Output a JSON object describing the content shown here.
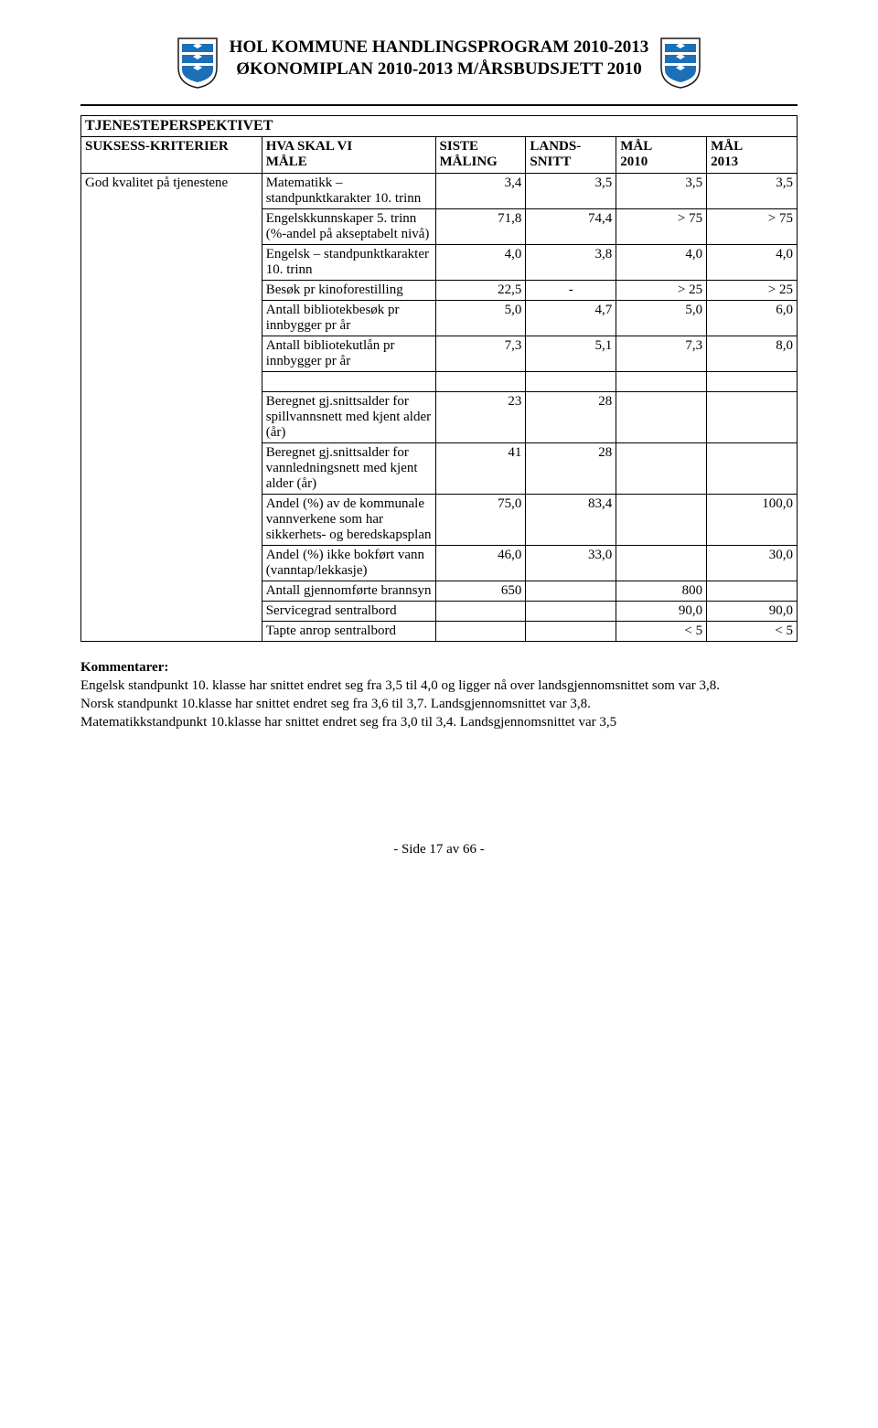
{
  "header": {
    "line1": "HOL KOMMUNE HANDLINGSPROGRAM 2010-2013",
    "line2": "ØKONOMIPLAN 2010-2013 M/ÅRSBUDSJETT 2010"
  },
  "shield": {
    "bg": "#ffffff",
    "blue": "#1d6fb8",
    "border": "#1a1a1a"
  },
  "table": {
    "section_title": "TJENESTEPERSPEKTIVET",
    "headers": {
      "criteria": "SUKSESS-KRITERIER",
      "measure_l1": "HVA SKAL VI",
      "measure_l2": "MÅLE",
      "last_l1": "SISTE",
      "last_l2": "MÅLING",
      "national_l1": "LANDS-",
      "national_l2": "SNITT",
      "goal2010_l1": "MÅL",
      "goal2010_l2": "2010",
      "goal2013_l1": "MÅL",
      "goal2013_l2": "2013"
    },
    "criteria_label": "God kvalitet på tjenestene",
    "rows1": [
      {
        "measure": "Matematikk – standpunktkarakter 10. trinn",
        "v1": "3,4",
        "v2": "3,5",
        "v3": "3,5",
        "v4": "3,5"
      },
      {
        "measure": "Engelskkunnskaper 5. trinn (%-andel på akseptabelt nivå)",
        "v1": "71,8",
        "v2": "74,4",
        "v3": "> 75",
        "v4": "> 75"
      },
      {
        "measure": "Engelsk – standpunktkarakter 10. trinn",
        "v1": "4,0",
        "v2": "3,8",
        "v3": "4,0",
        "v4": "4,0"
      },
      {
        "measure": "Besøk pr kinoforestilling",
        "v1": "22,5",
        "v2": "-",
        "v3": "> 25",
        "v4": "> 25"
      },
      {
        "measure": "Antall bibliotekbesøk pr innbygger pr år",
        "v1": "5,0",
        "v2": "4,7",
        "v3": "5,0",
        "v4": "6,0"
      },
      {
        "measure": "Antall bibliotekutlån pr innbygger pr år",
        "v1": "7,3",
        "v2": "5,1",
        "v3": "7,3",
        "v4": "8,0"
      }
    ],
    "rows2": [
      {
        "measure": "Beregnet gj.snittsalder for spillvannsnett med kjent alder  (år)",
        "v1": "23",
        "v2": "28",
        "v3": "",
        "v4": ""
      },
      {
        "measure": "Beregnet gj.snittsalder for vannledningsnett med kjent alder  (år)",
        "v1": "41",
        "v2": "28",
        "v3": "",
        "v4": ""
      },
      {
        "measure": "Andel (%) av de kommunale vannverkene som har sikkerhets- og beredskapsplan",
        "v1": "75,0",
        "v2": "83,4",
        "v3": "",
        "v4": "100,0"
      },
      {
        "measure": "Andel (%) ikke bokført vann (vanntap/lekkasje)",
        "v1": "46,0",
        "v2": "33,0",
        "v3": "",
        "v4": "30,0"
      },
      {
        "measure": "Antall gjennomførte brannsyn",
        "v1": "650",
        "v2": "",
        "v3": "800",
        "v4": ""
      },
      {
        "measure": "Servicegrad sentralbord",
        "v1": "",
        "v2": "",
        "v3": "90,0",
        "v4": "90,0"
      },
      {
        "measure": "Tapte anrop sentralbord",
        "v1": "",
        "v2": "",
        "v3": "< 5",
        "v4": "< 5"
      }
    ]
  },
  "comments": {
    "title": "Kommentarer:",
    "p1": "Engelsk standpunkt 10. klasse har snittet endret seg fra 3,5 til 4,0 og ligger nå over landsgjennomsnittet som var 3,8.",
    "p2": "Norsk standpunkt 10.klasse har snittet endret seg fra  3,6 til 3,7. Landsgjennomsnittet var 3,8.",
    "p3": "Matematikkstandpunkt 10.klasse har snittet endret seg fra 3,0 til 3,4. Landsgjennomsnittet var 3,5"
  },
  "footer": "- Side 17 av 66 -"
}
